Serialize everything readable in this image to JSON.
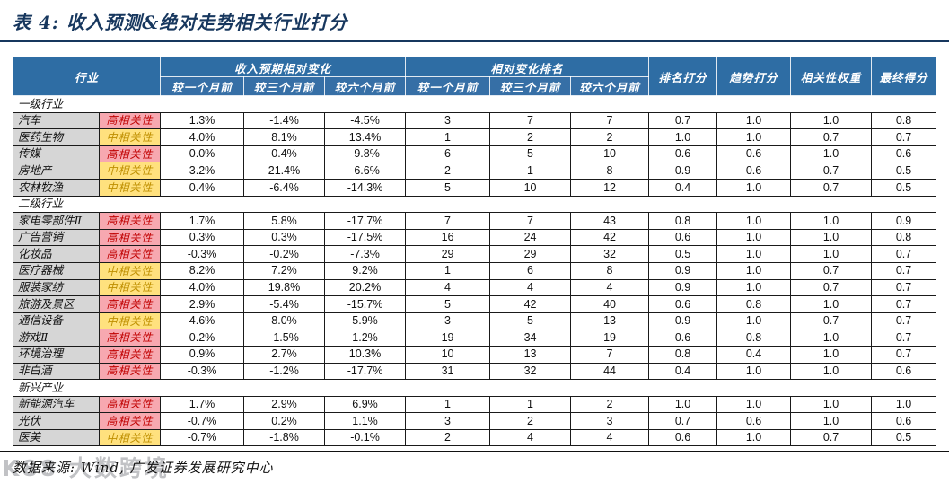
{
  "title": "表 4:  收入预测&绝对走势相关行业打分",
  "colors": {
    "header_blue": "#2e6da4",
    "subheader_blue": "#366fa6",
    "title_navy": "#17375e",
    "industry_cell_gray": "#d6d6d6",
    "high_correlation_bg": "#f7a8b0",
    "high_correlation_text": "#c00000",
    "mid_correlation_bg": "#ffe17e",
    "mid_correlation_text": "#bf8f00"
  },
  "table": {
    "headers": {
      "industry": "行业",
      "group1": "收入预期相对变化",
      "group2": "相对变化排名",
      "sub": [
        "较一个月前",
        "较三个月前",
        "较六个月前"
      ],
      "rank_score": "排名打分",
      "trend_score": "趋势打分",
      "correlation_weight": "相关性权重",
      "final_score": "最终得分"
    },
    "sections": [
      {
        "name": "一级行业",
        "rows": [
          {
            "industry": "汽车",
            "correlation": "高相关性",
            "values": [
              "1.3%",
              "-1.4%",
              "-4.5%",
              "3",
              "7",
              "7",
              "0.7",
              "1.0",
              "1.0",
              "0.8"
            ]
          },
          {
            "industry": "医药生物",
            "correlation": "中相关性",
            "values": [
              "4.0%",
              "8.1%",
              "13.4%",
              "1",
              "2",
              "2",
              "1.0",
              "1.0",
              "0.7",
              "0.7"
            ]
          },
          {
            "industry": "传媒",
            "correlation": "高相关性",
            "values": [
              "0.0%",
              "0.4%",
              "-9.8%",
              "6",
              "5",
              "10",
              "0.6",
              "0.6",
              "1.0",
              "0.6"
            ]
          },
          {
            "industry": "房地产",
            "correlation": "中相关性",
            "values": [
              "3.2%",
              "21.4%",
              "-6.6%",
              "2",
              "1",
              "8",
              "0.9",
              "0.6",
              "0.7",
              "0.5"
            ]
          },
          {
            "industry": "农林牧渔",
            "correlation": "中相关性",
            "values": [
              "0.4%",
              "-6.4%",
              "-14.3%",
              "5",
              "10",
              "12",
              "0.4",
              "1.0",
              "0.7",
              "0.5"
            ]
          }
        ]
      },
      {
        "name": "二级行业",
        "rows": [
          {
            "industry": "家电零部件Ⅱ",
            "correlation": "高相关性",
            "values": [
              "1.7%",
              "5.8%",
              "-17.7%",
              "7",
              "7",
              "43",
              "0.8",
              "1.0",
              "1.0",
              "0.9"
            ]
          },
          {
            "industry": "广告营销",
            "correlation": "高相关性",
            "values": [
              "0.3%",
              "0.3%",
              "-17.5%",
              "16",
              "24",
              "42",
              "0.6",
              "1.0",
              "1.0",
              "0.8"
            ]
          },
          {
            "industry": "化妆品",
            "correlation": "高相关性",
            "values": [
              "-0.3%",
              "-0.2%",
              "-7.3%",
              "29",
              "29",
              "32",
              "0.5",
              "1.0",
              "1.0",
              "0.7"
            ]
          },
          {
            "industry": "医疗器械",
            "correlation": "中相关性",
            "values": [
              "8.2%",
              "7.2%",
              "9.2%",
              "1",
              "6",
              "8",
              "0.9",
              "1.0",
              "0.7",
              "0.7"
            ]
          },
          {
            "industry": "服装家纺",
            "correlation": "中相关性",
            "values": [
              "4.0%",
              "19.8%",
              "20.2%",
              "4",
              "4",
              "4",
              "0.9",
              "1.0",
              "0.7",
              "0.7"
            ]
          },
          {
            "industry": "旅游及景区",
            "correlation": "高相关性",
            "values": [
              "2.9%",
              "-5.4%",
              "-15.7%",
              "5",
              "42",
              "40",
              "0.6",
              "0.8",
              "1.0",
              "0.7"
            ]
          },
          {
            "industry": "通信设备",
            "correlation": "中相关性",
            "values": [
              "4.6%",
              "8.0%",
              "5.9%",
              "3",
              "5",
              "13",
              "0.9",
              "1.0",
              "0.7",
              "0.7"
            ]
          },
          {
            "industry": "游戏Ⅱ",
            "correlation": "高相关性",
            "values": [
              "0.2%",
              "-1.5%",
              "1.2%",
              "19",
              "34",
              "19",
              "0.6",
              "0.8",
              "1.0",
              "0.7"
            ]
          },
          {
            "industry": "环境治理",
            "correlation": "高相关性",
            "values": [
              "0.9%",
              "2.7%",
              "10.3%",
              "10",
              "13",
              "7",
              "0.8",
              "0.4",
              "1.0",
              "0.7"
            ]
          },
          {
            "industry": "非白酒",
            "correlation": "高相关性",
            "values": [
              "-0.3%",
              "-1.2%",
              "-17.7%",
              "31",
              "32",
              "44",
              "0.4",
              "1.0",
              "1.0",
              "0.6"
            ]
          }
        ]
      },
      {
        "name": "新兴产业",
        "rows": [
          {
            "industry": "新能源汽车",
            "correlation": "高相关性",
            "values": [
              "1.7%",
              "2.9%",
              "6.9%",
              "1",
              "1",
              "2",
              "1.0",
              "1.0",
              "1.0",
              "1.0"
            ]
          },
          {
            "industry": "光伏",
            "correlation": "高相关性",
            "values": [
              "-0.7%",
              "0.2%",
              "1.1%",
              "3",
              "2",
              "3",
              "0.7",
              "0.6",
              "1.0",
              "0.6"
            ]
          },
          {
            "industry": "医美",
            "correlation": "中相关性",
            "values": [
              "-0.7%",
              "-1.8%",
              "-0.1%",
              "2",
              "4",
              "4",
              "0.6",
              "1.0",
              "0.7",
              "0.5"
            ]
          }
        ]
      }
    ]
  },
  "footer": {
    "source": "数据来源: Wind, 广发证券发展研究中心"
  },
  "watermark": "K88 大数跨境"
}
